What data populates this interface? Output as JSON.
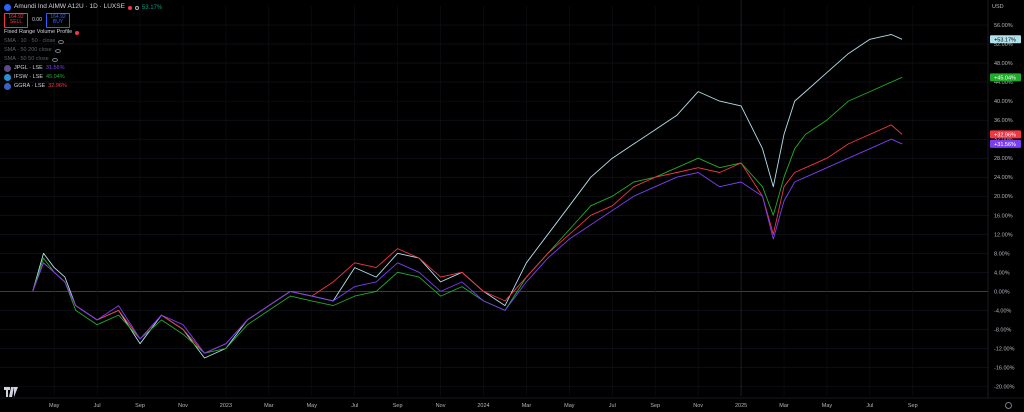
{
  "header": {
    "symbol_title": "Amundi Ind AIMW A12U · 1D · LUXSE",
    "change_pct": "53.17%",
    "sell_price": "164.92",
    "sell_label": "SELL",
    "spread": "0.00",
    "buy_price": "164.92",
    "buy_label": "BUY",
    "indicator_name": "Fixed Range Volume Profile",
    "currency": "USD"
  },
  "indicators": [
    {
      "label": "SMA · 10 · 50 · close"
    },
    {
      "label": "SMA · 50 200 close"
    },
    {
      "label": "SMA · 50 50 close"
    }
  ],
  "comparisons": [
    {
      "symbol": "JPGL · LSE",
      "value": "31.56%",
      "color": "#7b3ff2"
    },
    {
      "symbol": "IFSW · LSE",
      "value": "45.04%",
      "color": "#22ab2a"
    },
    {
      "symbol": "GGRA · LSE",
      "value": "32.96%",
      "color": "#f23645"
    }
  ],
  "colors": {
    "main": "#b2e0ea",
    "green": "#22ab2a",
    "red": "#f23645",
    "purple": "#7b3ff2"
  },
  "icons": [
    "symbol-logo-icon",
    "eye-icon",
    "gear-icon",
    "tradingview-logo-icon"
  ],
  "chart_data": {
    "type": "line",
    "x_tick_labels": [
      "May",
      "Jul",
      "Sep",
      "Nov",
      "2023",
      "Mar",
      "May",
      "Jul",
      "Sep",
      "Nov",
      "2024",
      "Mar",
      "May",
      "Jul",
      "Sep",
      "Nov",
      "2025",
      "Mar",
      "May",
      "Jul",
      "Sep"
    ],
    "y_ticks": [
      56,
      52,
      48,
      44,
      40,
      36,
      32,
      28,
      24,
      20,
      16,
      12,
      8,
      4,
      0,
      -4,
      -8,
      -12,
      -16,
      -20
    ],
    "y_tick_labels": [
      "56.00%",
      "52.00%",
      "48.00%",
      "44.00%",
      "40.00%",
      "36.00%",
      "32.00%",
      "28.00%",
      "24.00%",
      "20.00%",
      "16.00%",
      "12.00%",
      "8.00%",
      "4.00%",
      "0.00%",
      "-4.00%",
      "-8.00%",
      "-12.00%",
      "-16.00%",
      "-20.00%"
    ],
    "ylim": [
      -22,
      60
    ],
    "x_unit": "months since Apr 2022",
    "xlim": [
      -0.5,
      42.5
    ],
    "series": [
      {
        "name": "Amundi Ind AIMW A12U",
        "color": "#b2e0ea",
        "last_label": "+53.17%",
        "x": [
          0,
          0.5,
          1,
          1.5,
          2,
          3,
          4,
          5,
          6,
          7,
          8,
          9,
          10,
          11,
          12,
          13,
          14,
          15,
          16,
          17,
          18,
          19,
          20,
          21,
          22,
          23,
          24,
          25,
          26,
          27,
          28,
          29,
          30,
          31,
          32,
          33,
          34,
          34.5,
          35,
          35.5,
          36,
          37,
          38,
          39,
          40,
          40.5
        ],
        "y": [
          0,
          8,
          5,
          3,
          -3,
          -6,
          -4,
          -11,
          -5,
          -8,
          -14,
          -12,
          -6,
          -3,
          0,
          -1,
          -2,
          5,
          3,
          8,
          7,
          2,
          4,
          0,
          -3,
          6,
          12,
          18,
          24,
          28,
          31,
          34,
          37,
          42,
          40,
          39,
          30,
          22,
          33,
          40,
          42,
          46,
          50,
          53,
          54,
          53
        ]
      },
      {
        "name": "IFSW · LSE",
        "color": "#22ab2a",
        "last_label": "+45.04%",
        "x": [
          0,
          0.5,
          1,
          1.5,
          2,
          3,
          4,
          5,
          6,
          7,
          8,
          9,
          10,
          11,
          12,
          13,
          14,
          15,
          16,
          17,
          18,
          19,
          20,
          21,
          22,
          23,
          24,
          25,
          26,
          27,
          28,
          29,
          30,
          31,
          32,
          33,
          34,
          34.5,
          35,
          35.5,
          36,
          37,
          38,
          39,
          40,
          40.5
        ],
        "y": [
          0,
          7,
          4,
          2,
          -4,
          -7,
          -5,
          -10,
          -6,
          -9,
          -13,
          -12,
          -7,
          -4,
          -1,
          -2,
          -3,
          -1,
          0,
          4,
          3,
          -1,
          1,
          -2,
          -4,
          3,
          8,
          13,
          18,
          20,
          23,
          24,
          26,
          28,
          26,
          27,
          22,
          16,
          24,
          30,
          33,
          36,
          40,
          42,
          44,
          45
        ]
      },
      {
        "name": "GGRA · LSE",
        "color": "#f23645",
        "last_label": "+32.96%",
        "x": [
          0,
          0.5,
          1,
          1.5,
          2,
          3,
          4,
          5,
          6,
          7,
          8,
          9,
          10,
          11,
          12,
          13,
          14,
          15,
          16,
          17,
          18,
          19,
          20,
          21,
          22,
          23,
          24,
          25,
          26,
          27,
          28,
          29,
          30,
          31,
          32,
          33,
          34,
          34.5,
          35,
          35.5,
          36,
          37,
          38,
          39,
          40,
          40.5
        ],
        "y": [
          0,
          6,
          4,
          2,
          -3,
          -6,
          -4,
          -10,
          -5,
          -8,
          -13,
          -11,
          -6,
          -3,
          0,
          -1,
          2,
          6,
          5,
          9,
          7,
          3,
          4,
          0,
          -2,
          3,
          8,
          12,
          16,
          18,
          22,
          24,
          25,
          26,
          25,
          27,
          20,
          12,
          22,
          25,
          26,
          28,
          31,
          33,
          35,
          33
        ]
      },
      {
        "name": "JPGL · LSE",
        "color": "#7b3ff2",
        "last_label": "+31.56%",
        "x": [
          0,
          0.5,
          1,
          1.5,
          2,
          3,
          4,
          5,
          6,
          7,
          8,
          9,
          10,
          11,
          12,
          13,
          14,
          15,
          16,
          17,
          18,
          19,
          20,
          21,
          22,
          23,
          24,
          25,
          26,
          27,
          28,
          29,
          30,
          31,
          32,
          33,
          34,
          34.5,
          35,
          35.5,
          36,
          37,
          38,
          39,
          40,
          40.5
        ],
        "y": [
          0,
          6,
          4,
          2,
          -3,
          -6,
          -3,
          -10,
          -5,
          -7,
          -13,
          -11,
          -6,
          -3,
          0,
          -1,
          -2,
          1,
          2,
          6,
          4,
          0,
          2,
          -2,
          -4,
          2,
          7,
          11,
          14,
          17,
          20,
          22,
          24,
          25,
          22,
          23,
          20,
          11,
          19,
          23,
          24,
          26,
          28,
          30,
          32,
          31
        ]
      }
    ]
  }
}
